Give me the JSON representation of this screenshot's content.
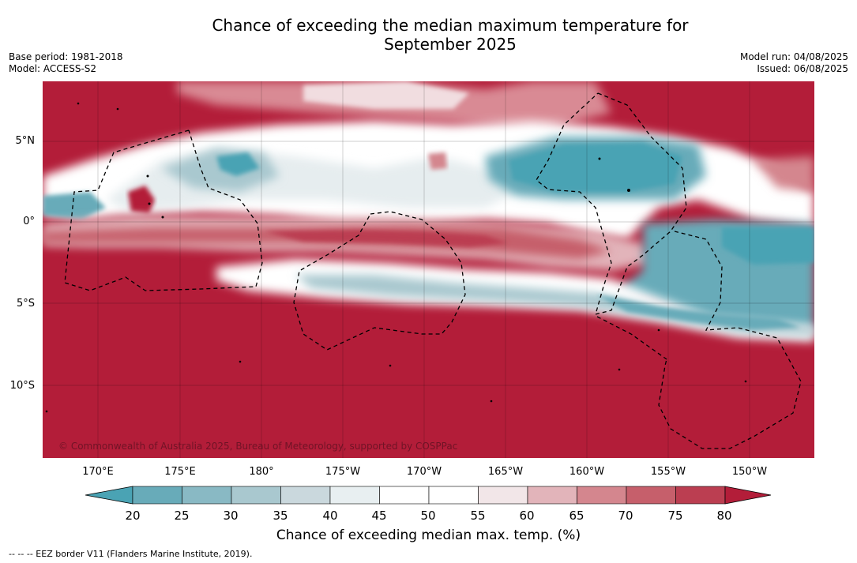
{
  "title_line1": "Chance of exceeding the median maximum temperature for",
  "title_line2": "September 2025",
  "meta": {
    "base_period": "Base period: 1981-2018",
    "model": "Model: ACCESS-S2",
    "model_run": "Model run: 04/08/2025",
    "issued": "Issued: 06/08/2025"
  },
  "latitude_labels": [
    "5°N",
    "0°",
    "5°S",
    "10°S"
  ],
  "longitude_labels": [
    "170°E",
    "175°E",
    "180°",
    "175°W",
    "170°W",
    "165°W",
    "160°W",
    "155°W",
    "150°W"
  ],
  "copyright": "© Commonwealth of Australia 2025, Bureau of Meteorology, supported by COSPPac",
  "colorbar": {
    "ticks": [
      "20",
      "25",
      "30",
      "35",
      "40",
      "45",
      "50",
      "55",
      "60",
      "65",
      "70",
      "75",
      "80"
    ],
    "colors": [
      "#4aa3b4",
      "#68abb9",
      "#89b9c4",
      "#a9c8cf",
      "#cad8dd",
      "#e8eff1",
      "#ffffff",
      "#ffffff",
      "#f2e6e8",
      "#e2b4ba",
      "#d4868e",
      "#c65f6b",
      "#bb3e51",
      "#b31d39"
    ],
    "label": "Chance of exceeding median max. temp. (%)"
  },
  "legend_footer": "--  --  -- EEZ border V11 (Flanders Marine Institute, 2019)."
}
